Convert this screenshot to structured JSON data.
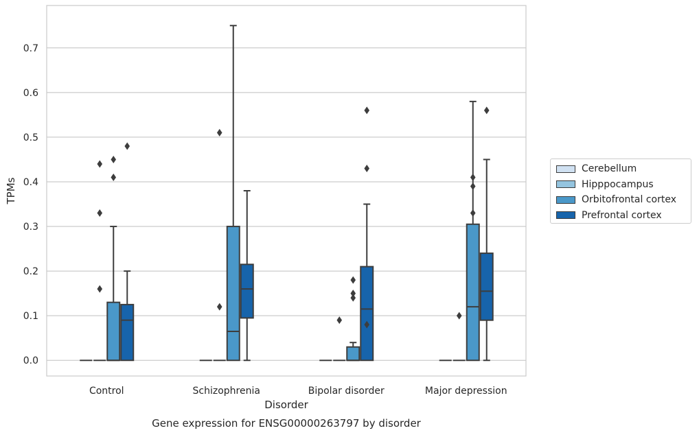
{
  "chart_data": {
    "type": "box",
    "title": "Gene expression for ENSG00000263797 by disorder",
    "xlabel": "Disorder",
    "ylabel": "TPMs",
    "ylim": [
      -0.035,
      0.795
    ],
    "yticks": [
      "0.0",
      "0.1",
      "0.2",
      "0.3",
      "0.4",
      "0.5",
      "0.6",
      "0.7"
    ],
    "grid": "horizontal",
    "legend_position": "right",
    "categories": [
      "Control",
      "Schizophrenia",
      "Bipolar disorder",
      "Major depression"
    ],
    "series": [
      {
        "name": "Cerebellum",
        "color": "#d0e1f2",
        "boxes": [
          {
            "q1": 0,
            "median": 0,
            "q3": 0,
            "whisker_low": 0,
            "whisker_high": 0,
            "outliers": []
          },
          {
            "q1": 0,
            "median": 0,
            "q3": 0,
            "whisker_low": 0,
            "whisker_high": 0,
            "outliers": []
          },
          {
            "q1": 0,
            "median": 0,
            "q3": 0,
            "whisker_low": 0,
            "whisker_high": 0,
            "outliers": []
          },
          {
            "q1": 0,
            "median": 0,
            "q3": 0,
            "whisker_low": 0,
            "whisker_high": 0,
            "outliers": []
          }
        ]
      },
      {
        "name": "Hipppocampus",
        "color": "#94c4df",
        "boxes": [
          {
            "q1": 0,
            "median": 0,
            "q3": 0,
            "whisker_low": 0,
            "whisker_high": 0,
            "outliers": [
              0.16,
              0.33,
              0.44
            ]
          },
          {
            "q1": 0,
            "median": 0,
            "q3": 0,
            "whisker_low": 0,
            "whisker_high": 0,
            "outliers": [
              0.12,
              0.51
            ]
          },
          {
            "q1": 0,
            "median": 0,
            "q3": 0,
            "whisker_low": 0,
            "whisker_high": 0,
            "outliers": [
              0.09
            ]
          },
          {
            "q1": 0,
            "median": 0,
            "q3": 0,
            "whisker_low": 0,
            "whisker_high": 0,
            "outliers": [
              0.1
            ]
          }
        ]
      },
      {
        "name": "Orbitofrontal cortex",
        "color": "#4a98c9",
        "boxes": [
          {
            "q1": 0,
            "median": 0,
            "q3": 0.13,
            "whisker_low": 0,
            "whisker_high": 0.3,
            "outliers": [
              0.41,
              0.45
            ]
          },
          {
            "q1": 0,
            "median": 0.065,
            "q3": 0.3,
            "whisker_low": 0,
            "whisker_high": 0.75,
            "outliers": []
          },
          {
            "q1": 0,
            "median": 0,
            "q3": 0.03,
            "whisker_low": 0,
            "whisker_high": 0.04,
            "outliers": [
              0.14,
              0.15,
              0.18
            ]
          },
          {
            "q1": 0,
            "median": 0.12,
            "q3": 0.305,
            "whisker_low": 0,
            "whisker_high": 0.58,
            "outliers": [
              0.33,
              0.39,
              0.41
            ]
          }
        ]
      },
      {
        "name": "Prefrontal cortex",
        "color": "#1764ab",
        "boxes": [
          {
            "q1": 0,
            "median": 0.09,
            "q3": 0.125,
            "whisker_low": 0,
            "whisker_high": 0.2,
            "outliers": [
              0.48
            ]
          },
          {
            "q1": 0.095,
            "median": 0.16,
            "q3": 0.215,
            "whisker_low": 0,
            "whisker_high": 0.38,
            "outliers": []
          },
          {
            "q1": 0,
            "median": 0.115,
            "q3": 0.21,
            "whisker_low": 0,
            "whisker_high": 0.35,
            "outliers": [
              0.08,
              0.43,
              0.56
            ]
          },
          {
            "q1": 0.09,
            "median": 0.155,
            "q3": 0.24,
            "whisker_low": 0,
            "whisker_high": 0.45,
            "outliers": [
              0.56
            ]
          }
        ]
      }
    ]
  }
}
